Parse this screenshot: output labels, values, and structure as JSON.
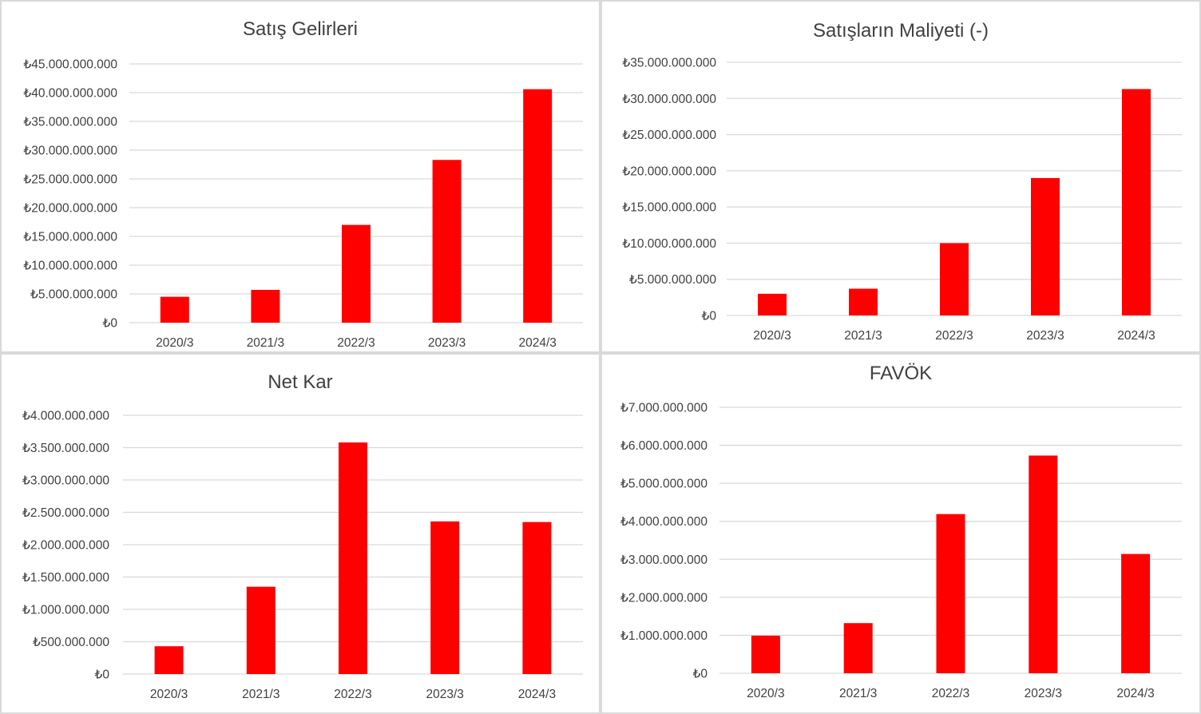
{
  "chart_data": [
    {
      "type": "bar",
      "title": "Satış Gelirleri",
      "categories": [
        "2020/3",
        "2021/3",
        "2022/3",
        "2023/3",
        "2024/3"
      ],
      "values": [
        4500000000,
        5700000000,
        17000000000,
        28300000000,
        40600000000
      ],
      "ylim": [
        0,
        45000000000
      ],
      "yticks": [
        "₺0",
        "₺5.000.000.000",
        "₺10.000.000.000",
        "₺15.000.000.000",
        "₺20.000.000.000",
        "₺25.000.000.000",
        "₺30.000.000.000",
        "₺35.000.000.000",
        "₺40.000.000.000",
        "₺45.000.000.000"
      ],
      "xlabel": "",
      "ylabel": "",
      "color": "#ff0000",
      "grid": true
    },
    {
      "type": "bar",
      "title": "Satışların Maliyeti (-)",
      "categories": [
        "2020/3",
        "2021/3",
        "2022/3",
        "2023/3",
        "2024/3"
      ],
      "values": [
        3000000000,
        3700000000,
        10000000000,
        19000000000,
        31300000000
      ],
      "ylim": [
        0,
        35000000000
      ],
      "yticks": [
        "₺0",
        "₺5.000.000.000",
        "₺10.000.000.000",
        "₺15.000.000.000",
        "₺20.000.000.000",
        "₺25.000.000.000",
        "₺30.000.000.000",
        "₺35.000.000.000"
      ],
      "xlabel": "",
      "ylabel": "",
      "color": "#ff0000",
      "grid": true
    },
    {
      "type": "bar",
      "title": "Net Kar",
      "categories": [
        "2020/3",
        "2021/3",
        "2022/3",
        "2023/3",
        "2024/3"
      ],
      "values": [
        430000000,
        1350000000,
        3580000000,
        2360000000,
        2350000000
      ],
      "ylim": [
        0,
        4000000000
      ],
      "yticks": [
        "₺0",
        "₺500.000.000",
        "₺1.000.000.000",
        "₺1.500.000.000",
        "₺2.000.000.000",
        "₺2.500.000.000",
        "₺3.000.000.000",
        "₺3.500.000.000",
        "₺4.000.000.000"
      ],
      "xlabel": "",
      "ylabel": "",
      "color": "#ff0000",
      "grid": true
    },
    {
      "type": "bar",
      "title": "FAVÖK",
      "categories": [
        "2020/3",
        "2021/3",
        "2022/3",
        "2023/3",
        "2024/3"
      ],
      "values": [
        990000000,
        1320000000,
        4190000000,
        5730000000,
        3140000000
      ],
      "ylim": [
        0,
        7000000000
      ],
      "yticks": [
        "₺0",
        "₺1.000.000.000",
        "₺2.000.000.000",
        "₺3.000.000.000",
        "₺4.000.000.000",
        "₺5.000.000.000",
        "₺6.000.000.000",
        "₺7.000.000.000"
      ],
      "xlabel": "",
      "ylabel": "",
      "color": "#ff0000",
      "grid": true
    }
  ]
}
